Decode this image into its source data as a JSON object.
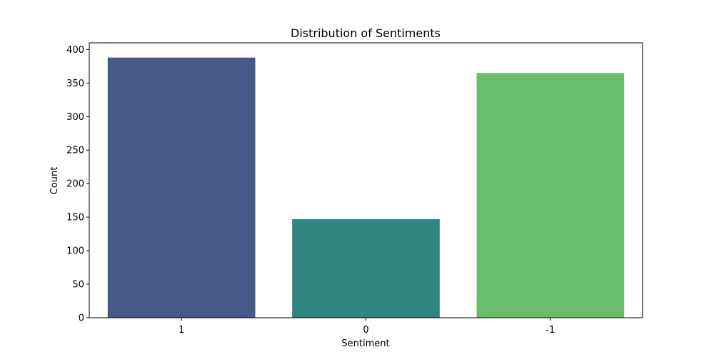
{
  "chart_data": {
    "type": "bar",
    "title": "Distribution of Sentiments",
    "xlabel": "Sentiment",
    "ylabel": "Count",
    "categories": [
      "1",
      "0",
      "-1"
    ],
    "values": [
      388,
      147,
      365
    ],
    "colors": [
      "#46598a",
      "#2e867e",
      "#6abd6c"
    ],
    "ylim": [
      0,
      410
    ],
    "yticks": [
      0,
      50,
      100,
      150,
      200,
      250,
      300,
      350,
      400
    ],
    "grid": false,
    "legend": "none"
  }
}
